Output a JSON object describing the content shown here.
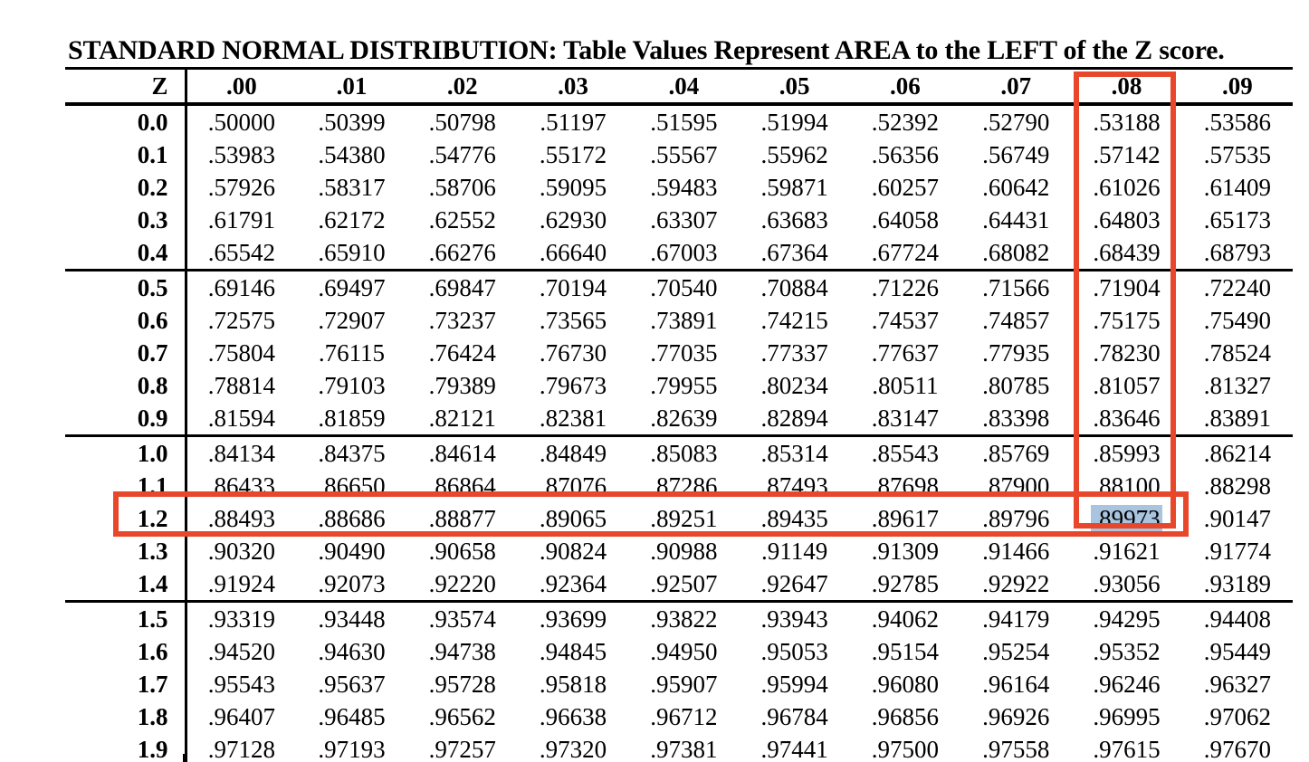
{
  "title": "STANDARD NORMAL DISTRIBUTION: Table Values Represent AREA to the LEFT of the Z score.",
  "table": {
    "corner_label": "Z",
    "columns": [
      ".00",
      ".01",
      ".02",
      ".03",
      ".04",
      ".05",
      ".06",
      ".07",
      ".08",
      ".09"
    ],
    "rows": [
      {
        "z": "0.0",
        "values": [
          ".50000",
          ".50399",
          ".50798",
          ".51197",
          ".51595",
          ".51994",
          ".52392",
          ".52790",
          ".53188",
          ".53586"
        ]
      },
      {
        "z": "0.1",
        "values": [
          ".53983",
          ".54380",
          ".54776",
          ".55172",
          ".55567",
          ".55962",
          ".56356",
          ".56749",
          ".57142",
          ".57535"
        ]
      },
      {
        "z": "0.2",
        "values": [
          ".57926",
          ".58317",
          ".58706",
          ".59095",
          ".59483",
          ".59871",
          ".60257",
          ".60642",
          ".61026",
          ".61409"
        ]
      },
      {
        "z": "0.3",
        "values": [
          ".61791",
          ".62172",
          ".62552",
          ".62930",
          ".63307",
          ".63683",
          ".64058",
          ".64431",
          ".64803",
          ".65173"
        ]
      },
      {
        "z": "0.4",
        "values": [
          ".65542",
          ".65910",
          ".66276",
          ".66640",
          ".67003",
          ".67364",
          ".67724",
          ".68082",
          ".68439",
          ".68793"
        ]
      },
      {
        "z": "0.5",
        "values": [
          ".69146",
          ".69497",
          ".69847",
          ".70194",
          ".70540",
          ".70884",
          ".71226",
          ".71566",
          ".71904",
          ".72240"
        ]
      },
      {
        "z": "0.6",
        "values": [
          ".72575",
          ".72907",
          ".73237",
          ".73565",
          ".73891",
          ".74215",
          ".74537",
          ".74857",
          ".75175",
          ".75490"
        ]
      },
      {
        "z": "0.7",
        "values": [
          ".75804",
          ".76115",
          ".76424",
          ".76730",
          ".77035",
          ".77337",
          ".77637",
          ".77935",
          ".78230",
          ".78524"
        ]
      },
      {
        "z": "0.8",
        "values": [
          ".78814",
          ".79103",
          ".79389",
          ".79673",
          ".79955",
          ".80234",
          ".80511",
          ".80785",
          ".81057",
          ".81327"
        ]
      },
      {
        "z": "0.9",
        "values": [
          ".81594",
          ".81859",
          ".82121",
          ".82381",
          ".82639",
          ".82894",
          ".83147",
          ".83398",
          ".83646",
          ".83891"
        ]
      },
      {
        "z": "1.0",
        "values": [
          ".84134",
          ".84375",
          ".84614",
          ".84849",
          ".85083",
          ".85314",
          ".85543",
          ".85769",
          ".85993",
          ".86214"
        ]
      },
      {
        "z": "1.1",
        "values": [
          ".86433",
          ".86650",
          ".86864",
          ".87076",
          ".87286",
          ".87493",
          ".87698",
          ".87900",
          ".88100",
          ".88298"
        ]
      },
      {
        "z": "1.2",
        "values": [
          ".88493",
          ".88686",
          ".88877",
          ".89065",
          ".89251",
          ".89435",
          ".89617",
          ".89796",
          ".89973",
          ".90147"
        ]
      },
      {
        "z": "1.3",
        "values": [
          ".90320",
          ".90490",
          ".90658",
          ".90824",
          ".90988",
          ".91149",
          ".91309",
          ".91466",
          ".91621",
          ".91774"
        ]
      },
      {
        "z": "1.4",
        "values": [
          ".91924",
          ".92073",
          ".92220",
          ".92364",
          ".92507",
          ".92647",
          ".92785",
          ".92922",
          ".93056",
          ".93189"
        ]
      },
      {
        "z": "1.5",
        "values": [
          ".93319",
          ".93448",
          ".93574",
          ".93699",
          ".93822",
          ".93943",
          ".94062",
          ".94179",
          ".94295",
          ".94408"
        ]
      },
      {
        "z": "1.6",
        "values": [
          ".94520",
          ".94630",
          ".94738",
          ".94845",
          ".94950",
          ".95053",
          ".95154",
          ".95254",
          ".95352",
          ".95449"
        ]
      },
      {
        "z": "1.7",
        "values": [
          ".95543",
          ".95637",
          ".95728",
          ".95818",
          ".95907",
          ".95994",
          ".96080",
          ".96164",
          ".96246",
          ".96327"
        ]
      },
      {
        "z": "1.8",
        "values": [
          ".96407",
          ".96485",
          ".96562",
          ".96638",
          ".96712",
          ".96784",
          ".96856",
          ".96926",
          ".96995",
          ".97062"
        ]
      },
      {
        "z": "1.9",
        "values": [
          ".97128",
          ".97193",
          ".97257",
          ".97320",
          ".97381",
          ".97441",
          ".97500",
          ".97558",
          ".97615",
          ".97670"
        ]
      }
    ]
  },
  "annotations": {
    "highlighted_column": ".08",
    "highlighted_row": "1.2",
    "selected_cell": {
      "row": "1.2",
      "column": ".08",
      "value": ".89973"
    },
    "colors": {
      "annotation_red": "#e8472b",
      "selection_blue": "#a9c4df",
      "text": "#000000",
      "background": "#ffffff"
    }
  }
}
